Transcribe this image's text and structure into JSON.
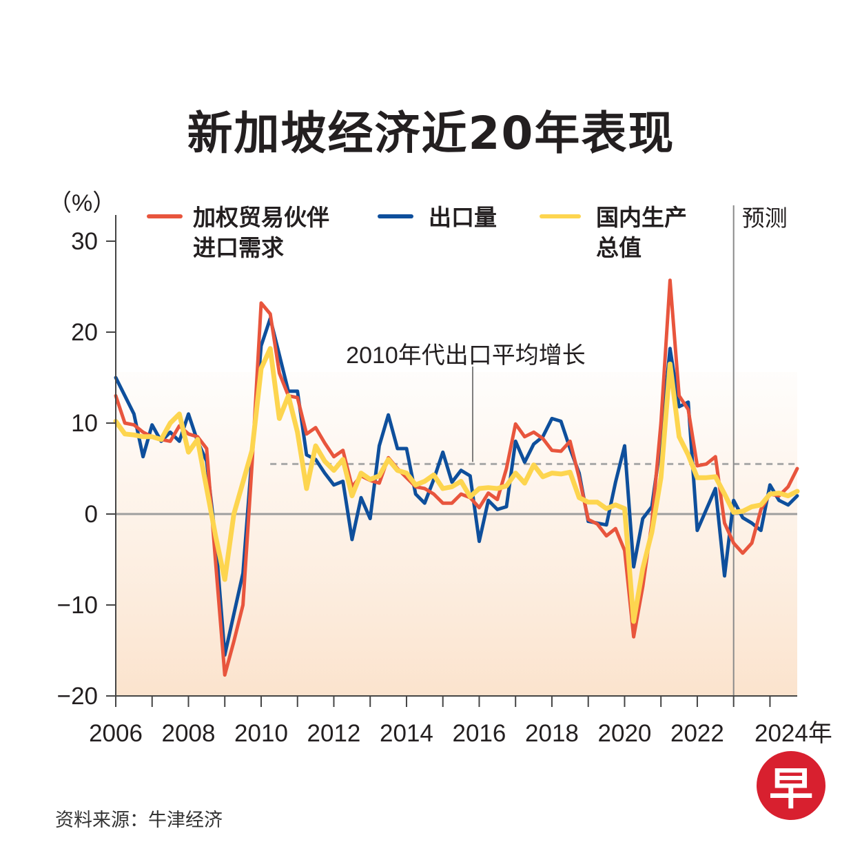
{
  "title": "新加坡经济近20年表现",
  "source_note": "资料来源：牛津经济",
  "logo_text": "早",
  "colors": {
    "red": "#e8553d",
    "blue": "#0e4f9c",
    "yellow": "#fdd54f",
    "logo": "#d8202f",
    "axis": "#444444",
    "zero": "#9e9e9e",
    "avg": "#a8a8a8",
    "shade": "#fbe6d2"
  },
  "chart_data": {
    "type": "line",
    "title": "新加坡经济近20年表现",
    "ylabel": "（%）",
    "ylim": [
      -20,
      30
    ],
    "xlim": [
      2006,
      2024.75
    ],
    "yticks": [
      -20,
      -10,
      0,
      10,
      20,
      30
    ],
    "ytick_labels": [
      "−20",
      "−10",
      "0",
      "10",
      "20",
      "30"
    ],
    "xticks": [
      2006,
      2008,
      2010,
      2012,
      2014,
      2016,
      2018,
      2020,
      2022,
      2024
    ],
    "xtick_labels": [
      "2006",
      "2008",
      "2010",
      "2012",
      "2014",
      "2016",
      "2018",
      "2020",
      "2022",
      "2024年"
    ],
    "forecast_start": 2023,
    "forecast_label": "预测",
    "average_line": {
      "label": "2010年代出口平均增长",
      "value": 5.5,
      "x_start": 2010.25,
      "x_end": 2024.75
    },
    "series": [
      {
        "name": "加权贸易伙伴进口需求",
        "label_lines": [
          "加权贸易伙伴",
          "进口需求"
        ],
        "color": "#e8553d",
        "points": [
          [
            2006,
            13
          ],
          [
            2006.25,
            10
          ],
          [
            2006.5,
            9.8
          ],
          [
            2006.75,
            9
          ],
          [
            2007,
            8.5
          ],
          [
            2007.25,
            8.2
          ],
          [
            2007.5,
            8
          ],
          [
            2007.75,
            9.7
          ],
          [
            2008,
            8.8
          ],
          [
            2008.25,
            8.5
          ],
          [
            2008.5,
            7.2
          ],
          [
            2008.75,
            -5.5
          ],
          [
            2009,
            -17.7
          ],
          [
            2009.25,
            -14
          ],
          [
            2009.5,
            -10
          ],
          [
            2009.75,
            5.5
          ],
          [
            2010,
            23.2
          ],
          [
            2010.25,
            22
          ],
          [
            2010.5,
            15.5
          ],
          [
            2010.75,
            13
          ],
          [
            2011,
            12.8
          ],
          [
            2011.25,
            8.8
          ],
          [
            2011.5,
            9.5
          ],
          [
            2011.75,
            7.8
          ],
          [
            2012,
            6.3
          ],
          [
            2012.25,
            7
          ],
          [
            2012.5,
            3
          ],
          [
            2012.75,
            4.2
          ],
          [
            2013,
            3.7
          ],
          [
            2013.25,
            3.4
          ],
          [
            2013.5,
            6.2
          ],
          [
            2013.75,
            5
          ],
          [
            2014,
            4
          ],
          [
            2014.25,
            3
          ],
          [
            2014.5,
            2.8
          ],
          [
            2014.75,
            2.2
          ],
          [
            2015,
            1.2
          ],
          [
            2015.25,
            1.2
          ],
          [
            2015.5,
            2.2
          ],
          [
            2015.75,
            1.8
          ],
          [
            2016,
            0.7
          ],
          [
            2016.25,
            2.3
          ],
          [
            2016.5,
            1.6
          ],
          [
            2016.75,
            5
          ],
          [
            2017,
            9.9
          ],
          [
            2017.25,
            8.5
          ],
          [
            2017.5,
            9
          ],
          [
            2017.75,
            8.3
          ],
          [
            2018,
            7
          ],
          [
            2018.25,
            6.9
          ],
          [
            2018.5,
            8
          ],
          [
            2018.75,
            4
          ],
          [
            2019,
            -0.6
          ],
          [
            2019.25,
            -1.1
          ],
          [
            2019.5,
            -2.4
          ],
          [
            2019.75,
            -1.6
          ],
          [
            2020,
            -4
          ],
          [
            2020.25,
            -13.5
          ],
          [
            2020.5,
            -8
          ],
          [
            2020.75,
            -1
          ],
          [
            2021,
            10
          ],
          [
            2021.25,
            25.7
          ],
          [
            2021.5,
            13
          ],
          [
            2021.75,
            11.5
          ],
          [
            2022,
            5.3
          ],
          [
            2022.25,
            5.5
          ],
          [
            2022.5,
            6.3
          ],
          [
            2022.75,
            -1
          ],
          [
            2023,
            -3.2
          ],
          [
            2023.25,
            -4.3
          ],
          [
            2023.5,
            -3.2
          ],
          [
            2023.75,
            0.5
          ],
          [
            2024,
            2.2
          ],
          [
            2024.25,
            2
          ],
          [
            2024.5,
            3
          ],
          [
            2024.75,
            5
          ]
        ]
      },
      {
        "name": "出口量",
        "label_lines": [
          "出口量"
        ],
        "color": "#0e4f9c",
        "points": [
          [
            2006,
            15
          ],
          [
            2006.25,
            13
          ],
          [
            2006.5,
            11
          ],
          [
            2006.75,
            6.3
          ],
          [
            2007,
            9.8
          ],
          [
            2007.25,
            8
          ],
          [
            2007.5,
            9
          ],
          [
            2007.75,
            8
          ],
          [
            2008,
            11
          ],
          [
            2008.25,
            8
          ],
          [
            2008.5,
            5.8
          ],
          [
            2008.75,
            -3
          ],
          [
            2009,
            -15.5
          ],
          [
            2009.25,
            -11
          ],
          [
            2009.5,
            -6.5
          ],
          [
            2009.75,
            6.5
          ],
          [
            2010,
            18.5
          ],
          [
            2010.25,
            21.5
          ],
          [
            2010.5,
            17.5
          ],
          [
            2010.75,
            13.5
          ],
          [
            2011,
            13.5
          ],
          [
            2011.25,
            6.5
          ],
          [
            2011.5,
            6
          ],
          [
            2011.75,
            4.5
          ],
          [
            2012,
            3.2
          ],
          [
            2012.25,
            3.6
          ],
          [
            2012.5,
            -2.8
          ],
          [
            2012.75,
            1.8
          ],
          [
            2013,
            -0.5
          ],
          [
            2013.25,
            7.5
          ],
          [
            2013.5,
            10.9
          ],
          [
            2013.75,
            7.2
          ],
          [
            2014,
            7.2
          ],
          [
            2014.25,
            2.2
          ],
          [
            2014.5,
            1.2
          ],
          [
            2014.75,
            3.8
          ],
          [
            2015,
            6.8
          ],
          [
            2015.25,
            3.5
          ],
          [
            2015.5,
            4.8
          ],
          [
            2015.75,
            4.2
          ],
          [
            2016,
            -3
          ],
          [
            2016.25,
            1.5
          ],
          [
            2016.5,
            0.5
          ],
          [
            2016.75,
            0.8
          ],
          [
            2017,
            8
          ],
          [
            2017.25,
            5.7
          ],
          [
            2017.5,
            7.7
          ],
          [
            2017.75,
            8.5
          ],
          [
            2018,
            10.5
          ],
          [
            2018.25,
            10.2
          ],
          [
            2018.5,
            7.2
          ],
          [
            2018.75,
            4.5
          ],
          [
            2019,
            -0.8
          ],
          [
            2019.25,
            -1
          ],
          [
            2019.5,
            -1.2
          ],
          [
            2019.75,
            3.5
          ],
          [
            2020,
            7.5
          ],
          [
            2020.25,
            -5.8
          ],
          [
            2020.5,
            -0.5
          ],
          [
            2020.75,
            0.8
          ],
          [
            2021,
            8
          ],
          [
            2021.25,
            18.2
          ],
          [
            2021.5,
            11.8
          ],
          [
            2021.75,
            12.3
          ],
          [
            2022,
            -1.8
          ],
          [
            2022.25,
            0.5
          ],
          [
            2022.5,
            2.8
          ],
          [
            2022.75,
            -6.8
          ],
          [
            2023,
            1.5
          ],
          [
            2023.25,
            -0.4
          ],
          [
            2023.5,
            -1
          ],
          [
            2023.75,
            -1.8
          ],
          [
            2024,
            3.2
          ],
          [
            2024.25,
            1.5
          ],
          [
            2024.5,
            1
          ],
          [
            2024.75,
            2
          ]
        ]
      },
      {
        "name": "国内生产总值",
        "label_lines": [
          "国内生产",
          "总值"
        ],
        "color": "#fdd54f",
        "points": [
          [
            2006,
            10.2
          ],
          [
            2006.25,
            8.8
          ],
          [
            2006.5,
            8.7
          ],
          [
            2006.75,
            8.5
          ],
          [
            2007,
            8.5
          ],
          [
            2007.25,
            8.2
          ],
          [
            2007.5,
            10
          ],
          [
            2007.75,
            11
          ],
          [
            2008,
            6.8
          ],
          [
            2008.25,
            8.2
          ],
          [
            2008.5,
            2.8
          ],
          [
            2008.75,
            -2.5
          ],
          [
            2009,
            -7.2
          ],
          [
            2009.25,
            0
          ],
          [
            2009.5,
            3.5
          ],
          [
            2009.75,
            7
          ],
          [
            2010,
            16
          ],
          [
            2010.25,
            18.2
          ],
          [
            2010.5,
            10.5
          ],
          [
            2010.75,
            13
          ],
          [
            2011,
            9
          ],
          [
            2011.25,
            2.8
          ],
          [
            2011.5,
            7.5
          ],
          [
            2011.75,
            5.8
          ],
          [
            2012,
            4.8
          ],
          [
            2012.25,
            6
          ],
          [
            2012.5,
            2
          ],
          [
            2012.75,
            4.5
          ],
          [
            2013,
            3.8
          ],
          [
            2013.25,
            4.2
          ],
          [
            2013.5,
            6
          ],
          [
            2013.75,
            4.8
          ],
          [
            2014,
            4.5
          ],
          [
            2014.25,
            3.2
          ],
          [
            2014.5,
            3.6
          ],
          [
            2014.75,
            4.3
          ],
          [
            2015,
            2.8
          ],
          [
            2015.25,
            3
          ],
          [
            2015.5,
            3.6
          ],
          [
            2015.75,
            1.9
          ],
          [
            2016,
            2.8
          ],
          [
            2016.25,
            2.9
          ],
          [
            2016.5,
            2.8
          ],
          [
            2016.75,
            3.1
          ],
          [
            2017,
            4.5
          ],
          [
            2017.25,
            3.4
          ],
          [
            2017.5,
            5.4
          ],
          [
            2017.75,
            4.1
          ],
          [
            2018,
            4.5
          ],
          [
            2018.25,
            4.4
          ],
          [
            2018.5,
            4.6
          ],
          [
            2018.75,
            1.8
          ],
          [
            2019,
            1.3
          ],
          [
            2019.25,
            1.3
          ],
          [
            2019.5,
            0.6
          ],
          [
            2019.75,
            1
          ],
          [
            2020,
            0.6
          ],
          [
            2020.25,
            -11.8
          ],
          [
            2020.5,
            -6
          ],
          [
            2020.75,
            -2
          ],
          [
            2021,
            4
          ],
          [
            2021.25,
            16.5
          ],
          [
            2021.5,
            8.5
          ],
          [
            2021.75,
            6.5
          ],
          [
            2022,
            4
          ],
          [
            2022.25,
            4
          ],
          [
            2022.5,
            4.1
          ],
          [
            2022.75,
            2.2
          ],
          [
            2023,
            0.2
          ],
          [
            2023.25,
            0.3
          ],
          [
            2023.5,
            0.8
          ],
          [
            2023.75,
            1
          ],
          [
            2024,
            2.2
          ],
          [
            2024.25,
            2.3
          ],
          [
            2024.5,
            2
          ],
          [
            2024.75,
            2.5
          ]
        ]
      }
    ]
  }
}
